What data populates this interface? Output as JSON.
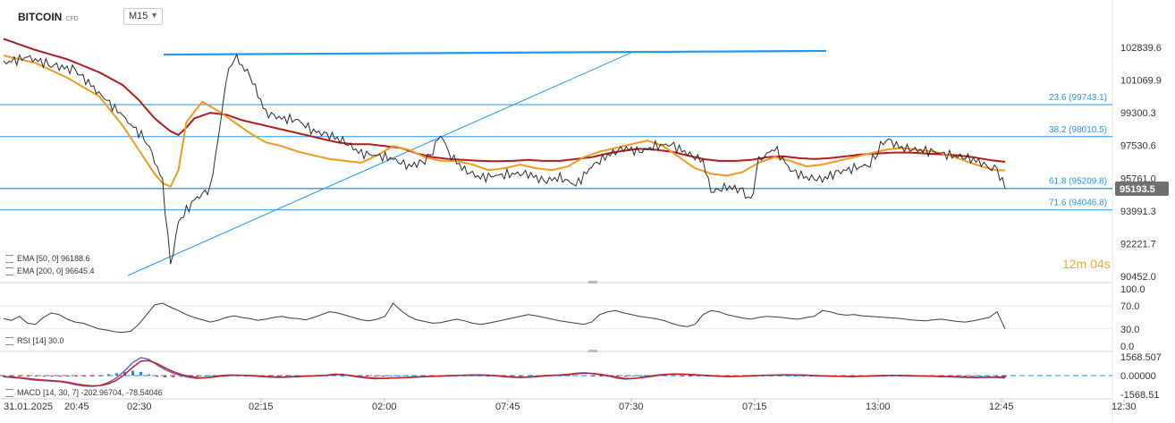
{
  "header": {
    "symbol": "BITCOIN",
    "instrument_type": "CFD",
    "timeframe": "M15",
    "timeframe_caret": "▼"
  },
  "indicators": {
    "ema50": "EMA [50, 0]  96188.6",
    "ema200": "EMA [200, 0]  96645.4",
    "rsi": "RSI [14]  30.0",
    "macd": "MACD [14, 30, 7]  -202.96704,  -78.54046"
  },
  "countdown": {
    "minutes": "12",
    "m_unit": "m",
    "seconds": "04",
    "s_unit": "s"
  },
  "colors": {
    "price": "#2a2a2a",
    "ema50": "#f39a1e",
    "ema200": "#b01c1c",
    "drawing": "#2196f3",
    "price_tag": "#707070",
    "macd_line": "#7a5cc0",
    "signal_line": "#c02020",
    "hist_pos": "#1e88e5",
    "hist_neg": "#d32f2f"
  },
  "chart_data": [
    {
      "type": "candlestick",
      "instrument": "BITCOIN",
      "timeframe": "M15",
      "y_ticks": [
        "102839.6",
        "101069.9",
        "99300.3",
        "97530.6",
        "95761.0",
        "93991.3",
        "92221.7",
        "90452.0"
      ],
      "ylim": [
        90452.0,
        103500.0
      ],
      "x_ticks": [
        "31.01.2025",
        "20:45",
        "02:30",
        "02:15",
        "02:00",
        "07:45",
        "07:30",
        "07:15",
        "13:00",
        "12:45",
        "12:30"
      ],
      "current_price": "95193.5",
      "fibonacci_levels": [
        {
          "label": "23.6 (99743.1)",
          "value": 99743.1
        },
        {
          "label": "38.2 (98010.5)",
          "value": 98010.5
        },
        {
          "label": "61.8 (95209.8)",
          "value": 95209.8
        },
        {
          "label": "71.6 (94046.8)",
          "value": 94046.8
        }
      ],
      "price_series": [
        {
          "t": 0,
          "v": 102000
        },
        {
          "t": 3,
          "v": 102300
        },
        {
          "t": 6,
          "v": 101900
        },
        {
          "t": 9,
          "v": 101600
        },
        {
          "t": 12,
          "v": 100400
        },
        {
          "t": 15,
          "v": 99100
        },
        {
          "t": 18,
          "v": 97800
        },
        {
          "t": 20,
          "v": 95600
        },
        {
          "t": 21,
          "v": 91000
        },
        {
          "t": 22,
          "v": 93400
        },
        {
          "t": 24,
          "v": 94600
        },
        {
          "t": 26,
          "v": 95200
        },
        {
          "t": 27,
          "v": 97800
        },
        {
          "t": 28,
          "v": 101100
        },
        {
          "t": 29,
          "v": 102400
        },
        {
          "t": 31,
          "v": 101300
        },
        {
          "t": 33,
          "v": 99300
        },
        {
          "t": 35,
          "v": 99000
        },
        {
          "t": 37,
          "v": 98900
        },
        {
          "t": 39,
          "v": 98300
        },
        {
          "t": 41,
          "v": 98100
        },
        {
          "t": 43,
          "v": 97700
        },
        {
          "t": 45,
          "v": 97100
        },
        {
          "t": 47,
          "v": 97000
        },
        {
          "t": 49,
          "v": 96800
        },
        {
          "t": 51,
          "v": 96400
        },
        {
          "t": 53,
          "v": 96700
        },
        {
          "t": 54,
          "v": 97300
        },
        {
          "t": 55,
          "v": 98200
        },
        {
          "t": 56,
          "v": 97100
        },
        {
          "t": 58,
          "v": 96200
        },
        {
          "t": 60,
          "v": 95800
        },
        {
          "t": 62,
          "v": 95900
        },
        {
          "t": 64,
          "v": 96000
        },
        {
          "t": 66,
          "v": 96000
        },
        {
          "t": 68,
          "v": 95600
        },
        {
          "t": 70,
          "v": 95800
        },
        {
          "t": 72,
          "v": 95400
        },
        {
          "t": 74,
          "v": 96400
        },
        {
          "t": 76,
          "v": 97000
        },
        {
          "t": 78,
          "v": 97400
        },
        {
          "t": 80,
          "v": 97200
        },
        {
          "t": 82,
          "v": 97500
        },
        {
          "t": 84,
          "v": 97600
        },
        {
          "t": 86,
          "v": 97100
        },
        {
          "t": 88,
          "v": 96700
        },
        {
          "t": 89,
          "v": 95000
        },
        {
          "t": 91,
          "v": 95300
        },
        {
          "t": 93,
          "v": 95100
        },
        {
          "t": 94,
          "v": 94400
        },
        {
          "t": 95,
          "v": 96700
        },
        {
          "t": 97,
          "v": 97400
        },
        {
          "t": 99,
          "v": 96200
        },
        {
          "t": 101,
          "v": 95800
        },
        {
          "t": 103,
          "v": 95700
        },
        {
          "t": 105,
          "v": 96100
        },
        {
          "t": 107,
          "v": 96300
        },
        {
          "t": 109,
          "v": 96500
        },
        {
          "t": 110,
          "v": 97300
        },
        {
          "t": 111,
          "v": 97900
        },
        {
          "t": 113,
          "v": 97400
        },
        {
          "t": 115,
          "v": 97300
        },
        {
          "t": 117,
          "v": 97200
        },
        {
          "t": 119,
          "v": 97000
        },
        {
          "t": 121,
          "v": 96900
        },
        {
          "t": 123,
          "v": 96600
        },
        {
          "t": 124,
          "v": 96300
        },
        {
          "t": 125,
          "v": 96200
        },
        {
          "t": 126,
          "v": 95190
        }
      ],
      "ema50_series": [
        {
          "t": 0,
          "v": 102400
        },
        {
          "t": 4,
          "v": 102000
        },
        {
          "t": 8,
          "v": 101200
        },
        {
          "t": 12,
          "v": 100200
        },
        {
          "t": 15,
          "v": 98600
        },
        {
          "t": 17,
          "v": 97300
        },
        {
          "t": 19,
          "v": 96000
        },
        {
          "t": 20,
          "v": 95500
        },
        {
          "t": 21,
          "v": 95300
        },
        {
          "t": 22,
          "v": 96200
        },
        {
          "t": 23,
          "v": 98800
        },
        {
          "t": 25,
          "v": 99900
        },
        {
          "t": 27,
          "v": 99400
        },
        {
          "t": 29,
          "v": 98800
        },
        {
          "t": 31,
          "v": 98200
        },
        {
          "t": 33,
          "v": 97700
        },
        {
          "t": 35,
          "v": 97500
        },
        {
          "t": 37,
          "v": 97200
        },
        {
          "t": 39,
          "v": 97000
        },
        {
          "t": 41,
          "v": 96800
        },
        {
          "t": 43,
          "v": 96700
        },
        {
          "t": 45,
          "v": 96600
        },
        {
          "t": 47,
          "v": 97000
        },
        {
          "t": 49,
          "v": 97500
        },
        {
          "t": 51,
          "v": 97300
        },
        {
          "t": 53,
          "v": 96900
        },
        {
          "t": 55,
          "v": 96700
        },
        {
          "t": 57,
          "v": 96700
        },
        {
          "t": 59,
          "v": 96500
        },
        {
          "t": 61,
          "v": 96200
        },
        {
          "t": 63,
          "v": 96300
        },
        {
          "t": 65,
          "v": 96500
        },
        {
          "t": 67,
          "v": 96300
        },
        {
          "t": 69,
          "v": 96200
        },
        {
          "t": 71,
          "v": 96400
        },
        {
          "t": 73,
          "v": 96900
        },
        {
          "t": 75,
          "v": 97200
        },
        {
          "t": 77,
          "v": 97400
        },
        {
          "t": 79,
          "v": 97600
        },
        {
          "t": 81,
          "v": 97800
        },
        {
          "t": 83,
          "v": 97500
        },
        {
          "t": 85,
          "v": 96900
        },
        {
          "t": 87,
          "v": 96300
        },
        {
          "t": 89,
          "v": 96000
        },
        {
          "t": 91,
          "v": 95900
        },
        {
          "t": 93,
          "v": 96100
        },
        {
          "t": 95,
          "v": 96600
        },
        {
          "t": 97,
          "v": 96900
        },
        {
          "t": 99,
          "v": 96700
        },
        {
          "t": 101,
          "v": 96400
        },
        {
          "t": 103,
          "v": 96500
        },
        {
          "t": 105,
          "v": 96700
        },
        {
          "t": 107,
          "v": 96900
        },
        {
          "t": 109,
          "v": 97100
        },
        {
          "t": 111,
          "v": 97300
        },
        {
          "t": 113,
          "v": 97400
        },
        {
          "t": 115,
          "v": 97300
        },
        {
          "t": 117,
          "v": 97200
        },
        {
          "t": 119,
          "v": 97000
        },
        {
          "t": 121,
          "v": 96700
        },
        {
          "t": 123,
          "v": 96400
        },
        {
          "t": 125,
          "v": 96190
        },
        {
          "t": 126,
          "v": 96188.6
        }
      ],
      "ema200_series": [
        {
          "t": 0,
          "v": 103300
        },
        {
          "t": 4,
          "v": 102700
        },
        {
          "t": 8,
          "v": 102200
        },
        {
          "t": 12,
          "v": 101500
        },
        {
          "t": 15,
          "v": 100800
        },
        {
          "t": 17,
          "v": 100000
        },
        {
          "t": 19,
          "v": 99000
        },
        {
          "t": 21,
          "v": 98300
        },
        {
          "t": 22,
          "v": 98100
        },
        {
          "t": 23,
          "v": 98500
        },
        {
          "t": 24,
          "v": 99000
        },
        {
          "t": 26,
          "v": 99300
        },
        {
          "t": 28,
          "v": 99200
        },
        {
          "t": 30,
          "v": 98900
        },
        {
          "t": 32,
          "v": 98700
        },
        {
          "t": 34,
          "v": 98500
        },
        {
          "t": 36,
          "v": 98300
        },
        {
          "t": 38,
          "v": 98100
        },
        {
          "t": 40,
          "v": 97900
        },
        {
          "t": 42,
          "v": 97700
        },
        {
          "t": 44,
          "v": 97600
        },
        {
          "t": 46,
          "v": 97600
        },
        {
          "t": 48,
          "v": 97500
        },
        {
          "t": 50,
          "v": 97400
        },
        {
          "t": 52,
          "v": 97100
        },
        {
          "t": 54,
          "v": 96900
        },
        {
          "t": 56,
          "v": 96800
        },
        {
          "t": 58,
          "v": 96750
        },
        {
          "t": 60,
          "v": 96700
        },
        {
          "t": 62,
          "v": 96680
        },
        {
          "t": 64,
          "v": 96700
        },
        {
          "t": 66,
          "v": 96750
        },
        {
          "t": 68,
          "v": 96700
        },
        {
          "t": 70,
          "v": 96700
        },
        {
          "t": 72,
          "v": 96800
        },
        {
          "t": 74,
          "v": 96900
        },
        {
          "t": 76,
          "v": 97100
        },
        {
          "t": 78,
          "v": 97250
        },
        {
          "t": 80,
          "v": 97350
        },
        {
          "t": 82,
          "v": 97300
        },
        {
          "t": 84,
          "v": 97200
        },
        {
          "t": 86,
          "v": 97000
        },
        {
          "t": 88,
          "v": 96800
        },
        {
          "t": 90,
          "v": 96700
        },
        {
          "t": 92,
          "v": 96700
        },
        {
          "t": 94,
          "v": 96750
        },
        {
          "t": 96,
          "v": 96900
        },
        {
          "t": 98,
          "v": 96950
        },
        {
          "t": 100,
          "v": 96850
        },
        {
          "t": 102,
          "v": 96800
        },
        {
          "t": 104,
          "v": 96850
        },
        {
          "t": 106,
          "v": 96950
        },
        {
          "t": 108,
          "v": 97050
        },
        {
          "t": 110,
          "v": 97100
        },
        {
          "t": 112,
          "v": 97150
        },
        {
          "t": 114,
          "v": 97150
        },
        {
          "t": 116,
          "v": 97100
        },
        {
          "t": 118,
          "v": 97050
        },
        {
          "t": 120,
          "v": 97000
        },
        {
          "t": 122,
          "v": 96900
        },
        {
          "t": 124,
          "v": 96750
        },
        {
          "t": 126,
          "v": 96645.4
        }
      ]
    },
    {
      "type": "line",
      "name": "RSI [14]",
      "y_ticks": [
        "100.0",
        "70.0",
        "30.0",
        "0.0"
      ],
      "ylim": [
        0,
        100
      ],
      "current": 30.0,
      "values": [
        48,
        45,
        52,
        40,
        38,
        50,
        58,
        55,
        47,
        42,
        40,
        35,
        30,
        28,
        25,
        24,
        26,
        38,
        55,
        72,
        75,
        68,
        62,
        55,
        50,
        46,
        42,
        45,
        50,
        53,
        50,
        48,
        45,
        47,
        50,
        52,
        49,
        48,
        46,
        50,
        55,
        60,
        58,
        54,
        50,
        46,
        44,
        47,
        52,
        75,
        62,
        52,
        46,
        43,
        40,
        41,
        44,
        47,
        44,
        40,
        38,
        40,
        43,
        46,
        49,
        52,
        55,
        53,
        50,
        47,
        44,
        42,
        40,
        38,
        42,
        55,
        60,
        62,
        58,
        55,
        52,
        50,
        48,
        45,
        40,
        36,
        34,
        38,
        55,
        62,
        60,
        55,
        52,
        49,
        47,
        50,
        52,
        51,
        50,
        48,
        47,
        50,
        52,
        62,
        60,
        56,
        54,
        55,
        53,
        52,
        51,
        50,
        49,
        48,
        46,
        45,
        44,
        46,
        47,
        45,
        43,
        42,
        44,
        47,
        50,
        60,
        30
      ]
    },
    {
      "type": "line",
      "name": "MACD [14, 30, 7]",
      "y_ticks": [
        "1568.507",
        "0.00000",
        "-1568.51"
      ],
      "ylim": [
        -1568.51,
        1568.507
      ],
      "macd": -202.96704,
      "signal": -78.54046,
      "macd_values": [
        -100,
        -150,
        -220,
        -300,
        -380,
        -420,
        -460,
        -500,
        -620,
        -780,
        -880,
        -900,
        -820,
        -560,
        -180,
        400,
        1100,
        1500,
        1350,
        900,
        500,
        200,
        0,
        -150,
        -230,
        -180,
        -80,
        20,
        50,
        40,
        20,
        -30,
        -80,
        -120,
        -150,
        -130,
        -90,
        -50,
        -30,
        0,
        40,
        130,
        80,
        -20,
        -120,
        -220,
        -260,
        -240,
        -200,
        -180,
        -150,
        -100,
        -80,
        -60,
        -30,
        0,
        20,
        40,
        60,
        50,
        30,
        -30,
        -90,
        -140,
        -160,
        -120,
        -60,
        0,
        40,
        60,
        120,
        200,
        230,
        160,
        60,
        -60,
        -220,
        -300,
        -250,
        -140,
        -40,
        50,
        110,
        140,
        120,
        80,
        40,
        0,
        -40,
        -70,
        -80,
        -60,
        -20,
        10,
        30,
        40,
        50,
        70,
        60,
        40,
        10,
        -20,
        -40,
        -60,
        -70,
        -80,
        -60,
        -30,
        0,
        10,
        20,
        10,
        0,
        -20,
        -40,
        -60,
        -80,
        -90,
        -120,
        -150,
        -160,
        -150,
        -130,
        -150,
        -203
      ],
      "signal_values": [
        -80,
        -120,
        -180,
        -250,
        -320,
        -370,
        -420,
        -460,
        -560,
        -700,
        -800,
        -860,
        -830,
        -680,
        -380,
        100,
        700,
        1200,
        1250,
        1000,
        650,
        330,
        100,
        -60,
        -170,
        -180,
        -120,
        -40,
        10,
        30,
        25,
        0,
        -50,
        -90,
        -120,
        -120,
        -100,
        -70,
        -40,
        -10,
        20,
        80,
        80,
        10,
        -80,
        -170,
        -220,
        -230,
        -210,
        -190,
        -165,
        -125,
        -95,
        -70,
        -45,
        -15,
        5,
        25,
        45,
        48,
        38,
        0,
        -55,
        -110,
        -140,
        -130,
        -85,
        -30,
        15,
        45,
        90,
        160,
        200,
        180,
        100,
        -10,
        -150,
        -250,
        -250,
        -170,
        -80,
        10,
        80,
        120,
        125,
        95,
        55,
        15,
        -25,
        -55,
        -70,
        -65,
        -35,
        -5,
        20,
        32,
        42,
        58,
        58,
        45,
        20,
        -10,
        -32,
        -50,
        -62,
        -72,
        -63,
        -42,
        -15,
        3,
        15,
        12,
        3,
        -12,
        -30,
        -48,
        -66,
        -78,
        -100,
        -130,
        -148,
        -150,
        -138,
        -140,
        -78.5
      ]
    }
  ]
}
